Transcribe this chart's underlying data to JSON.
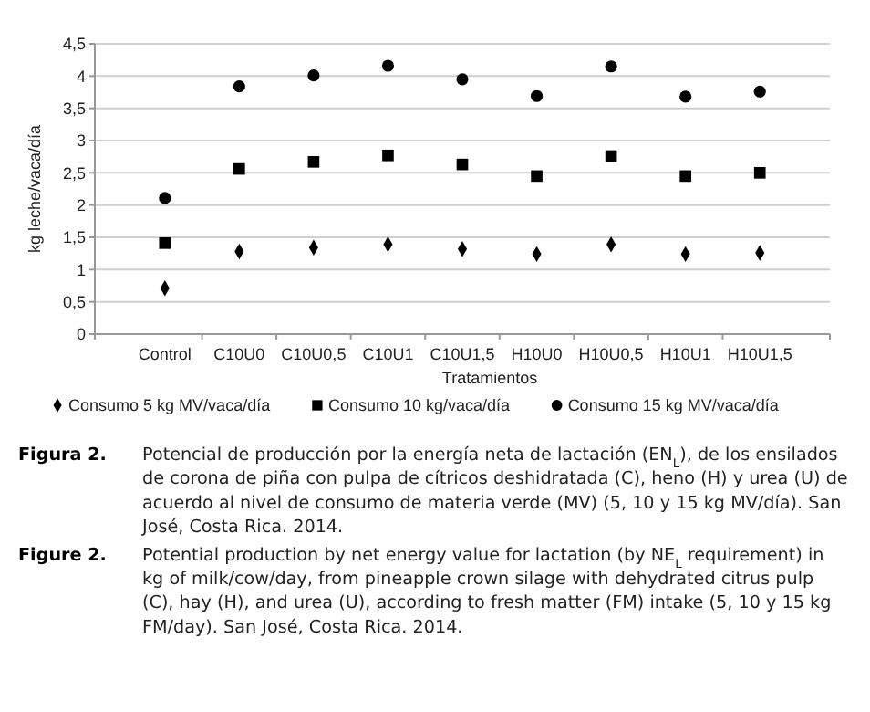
{
  "chart_data": {
    "type": "scatter",
    "xlabel": "Tratamientos",
    "ylabel": "kg leche/vaca/día",
    "categories": [
      "Control",
      "C10U0",
      "C10U0,5",
      "C10U1",
      "C10U1,5",
      "H10U0",
      "H10U0,5",
      "H10U1",
      "H10U1,5"
    ],
    "series": [
      {
        "name": "Consumo 5 kg MV/vaca/día",
        "color": "#000000",
        "marker": "diamond",
        "values": [
          0.71,
          1.28,
          1.34,
          1.39,
          1.32,
          1.24,
          1.39,
          1.24,
          1.26
        ]
      },
      {
        "name": "Consumo 10 kg/vaca/día",
        "color": "#000000",
        "marker": "square",
        "values": [
          1.41,
          2.56,
          2.67,
          2.77,
          2.63,
          2.45,
          2.76,
          2.45,
          2.5
        ]
      },
      {
        "name": "Consumo 15 kg MV/vaca/día",
        "color": "#000000",
        "marker": "circle",
        "values": [
          2.11,
          3.84,
          4.01,
          4.16,
          3.95,
          3.69,
          4.15,
          3.68,
          3.76
        ]
      }
    ],
    "ylim": [
      0,
      4.5
    ],
    "yticks": [
      0,
      {
        "value": 0.5,
        "label": "0,5"
      },
      1,
      {
        "value": 1.5,
        "label": "1,5"
      },
      2,
      {
        "value": 2.5,
        "label": "2,5"
      },
      3,
      {
        "value": 3.5,
        "label": "3,5"
      },
      4,
      {
        "value": 4.5,
        "label": "4,5"
      }
    ],
    "grid": "y",
    "legend": "bottom",
    "annotations": [
      "Figura 2.",
      "Potencial de producción por la energía neta de lactación (EN$_{L}$), de los ensilados de corona de piña con pulpa de cítricos deshidratada (C), heno (H) y urea (U) de acuerdo al nivel de consumo de materia verde (MV) (5, 10 y 15 kg MV/día). San José, Costa Rica. 2014.",
      "Figure 2.",
      "Potential production by net energy value for lactation (by NE$_{L}$ requirement) in kg of milk/cow/day, from pineapple crown silage with dehydrated citrus pulp (C), hay (H), and urea (U), according to fresh matter (FM) intake (5, 10 y 15 kg FM/day). San José, Costa Rica. 2014."
    ]
  }
}
